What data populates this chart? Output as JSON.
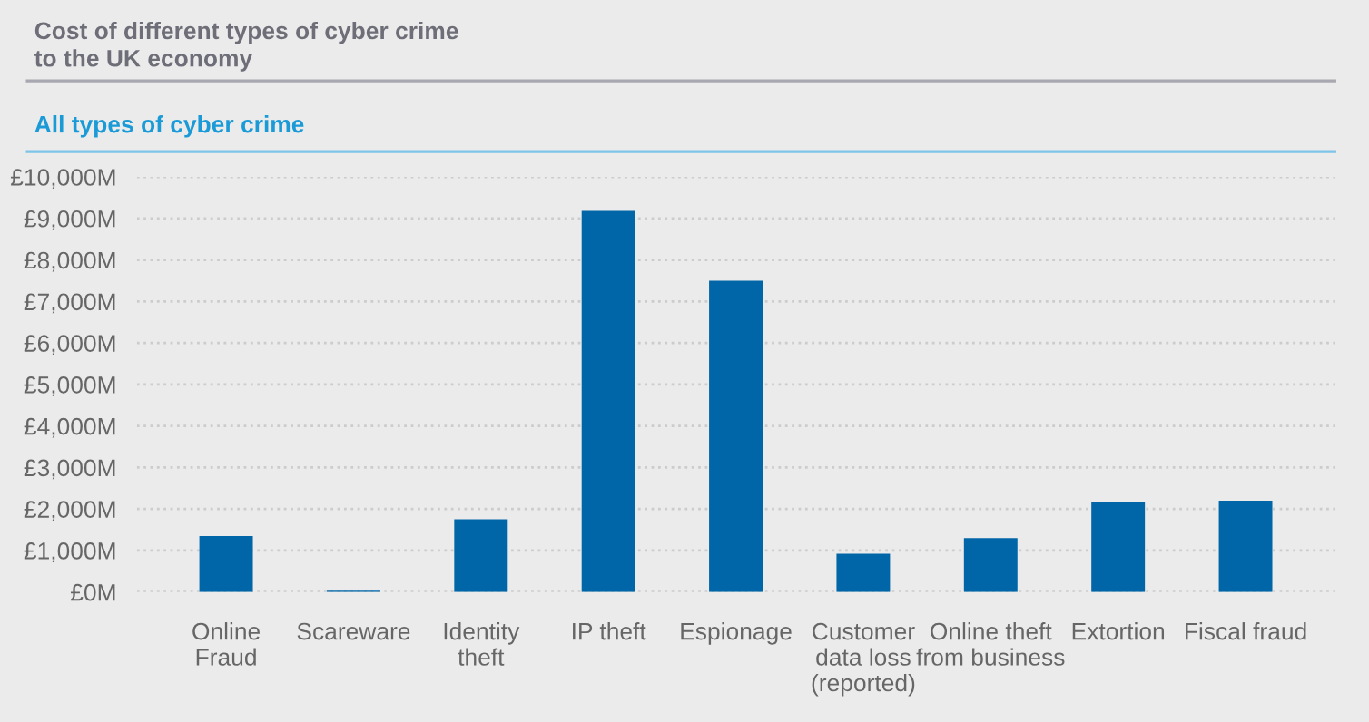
{
  "chart_data": {
    "type": "bar",
    "title": "Cost of different types of cyber crime\nto the UK economy",
    "subtitle": "All types of cyber crime",
    "categories": [
      "Online\nFraud",
      "Scareware",
      "Identity\ntheft",
      "IP theft",
      "Espionage",
      "Customer\ndata loss\n(reported)",
      "Online theft\nfrom business",
      "Extortion",
      "Fiscal fraud"
    ],
    "values": [
      1350,
      30,
      1750,
      9180,
      7500,
      920,
      1300,
      2170,
      2200
    ],
    "color": "#0066a8",
    "ylim": [
      0,
      10000
    ],
    "yticks": [
      {
        "value": 0,
        "label": "£0M"
      },
      {
        "value": 1000,
        "label": "£1,000M"
      },
      {
        "value": 2000,
        "label": "£2,000M"
      },
      {
        "value": 3000,
        "label": "£3,000M"
      },
      {
        "value": 4000,
        "label": "£4,000M"
      },
      {
        "value": 5000,
        "label": "£5,000M"
      },
      {
        "value": 6000,
        "label": "£6,000M"
      },
      {
        "value": 7000,
        "label": "£7,000M"
      },
      {
        "value": 8000,
        "label": "£8,000M"
      },
      {
        "value": 9000,
        "label": "£9,000M"
      },
      {
        "value": 10000,
        "label": "£10,000M"
      }
    ],
    "grid": "y"
  }
}
